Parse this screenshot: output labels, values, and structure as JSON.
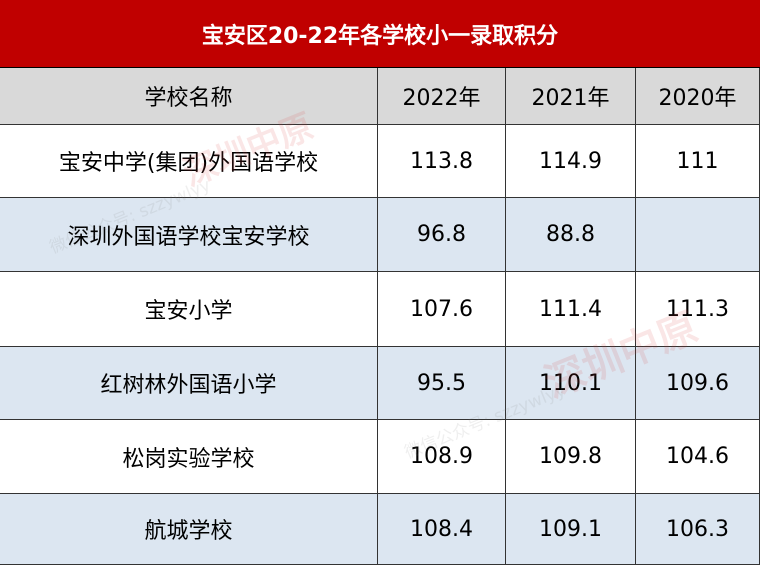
{
  "title": "宝安区20-22年各学校小一录取积分",
  "table": {
    "header": [
      "学校名称",
      "2022年",
      "2021年",
      "2020年"
    ],
    "rows": [
      [
        "宝安中学(集团)外国语学校",
        "113.8",
        "114.9",
        "111"
      ],
      [
        "深圳外国语学校宝安学校",
        "96.8",
        "88.8",
        null
      ],
      [
        "宝安小学",
        "107.6",
        "111.4",
        "111.3"
      ],
      [
        "红树林外国语小学",
        "95.5",
        "110.1",
        "109.6"
      ],
      [
        "松岗实验学校",
        "108.9",
        "109.8",
        "104.6"
      ],
      [
        "航城学校",
        "108.4",
        "109.1",
        "106.3"
      ]
    ]
  },
  "watermark": {
    "brand": "深圳中原",
    "account": "微信公众号: szzywlyy"
  }
}
